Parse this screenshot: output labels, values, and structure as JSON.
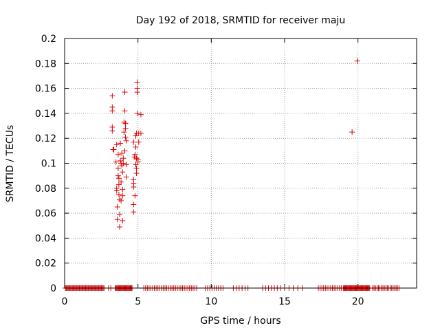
{
  "chart_data": {
    "type": "scatter",
    "title": "Day 192 of 2018, SRMTID for receiver maju",
    "xlabel": "GPS time / hours",
    "ylabel": "SRMTID / TECUs",
    "xlim": [
      0,
      24
    ],
    "ylim": [
      0,
      0.2
    ],
    "xticks": [
      0,
      5,
      10,
      15,
      20
    ],
    "xtick_labels": [
      "0",
      "5",
      "10",
      "15",
      "20"
    ],
    "yticks": [
      0,
      0.02,
      0.04,
      0.06,
      0.08,
      0.1,
      0.12,
      0.14,
      0.16,
      0.18,
      0.2
    ],
    "ytick_labels": [
      "0",
      "0.02",
      "0.04",
      "0.06",
      "0.08",
      "0.1",
      "0.12",
      "0.14",
      "0.16",
      "0.18",
      "0.2"
    ],
    "grid": true,
    "marker": "+",
    "color": "#e00000",
    "series": [
      {
        "name": "SRMTID",
        "points": [
          [
            3.25,
            0.154
          ],
          [
            3.25,
            0.145
          ],
          [
            3.25,
            0.142
          ],
          [
            3.25,
            0.129
          ],
          [
            3.25,
            0.126
          ],
          [
            3.3,
            0.111
          ],
          [
            3.35,
            0.111
          ],
          [
            3.5,
            0.101
          ],
          [
            3.55,
            0.115
          ],
          [
            3.55,
            0.08
          ],
          [
            3.55,
            0.078
          ],
          [
            3.6,
            0.065
          ],
          [
            3.6,
            0.055
          ],
          [
            3.65,
            0.107
          ],
          [
            3.65,
            0.096
          ],
          [
            3.65,
            0.09
          ],
          [
            3.7,
            0.088
          ],
          [
            3.7,
            0.083
          ],
          [
            3.7,
            0.075
          ],
          [
            3.75,
            0.071
          ],
          [
            3.75,
            0.059
          ],
          [
            3.75,
            0.049
          ],
          [
            3.8,
            0.116
          ],
          [
            3.8,
            0.102
          ],
          [
            3.85,
            0.1
          ],
          [
            3.85,
            0.085
          ],
          [
            3.85,
            0.07
          ],
          [
            3.9,
            0.108
          ],
          [
            3.9,
            0.098
          ],
          [
            3.95,
            0.093
          ],
          [
            3.95,
            0.079
          ],
          [
            3.95,
            0.074
          ],
          [
            3.95,
            0.054
          ],
          [
            4.0,
            0.104
          ],
          [
            4.0,
            0.1
          ],
          [
            4.05,
            0.133
          ],
          [
            4.05,
            0.125
          ],
          [
            4.1,
            0.157
          ],
          [
            4.1,
            0.142
          ],
          [
            4.1,
            0.11
          ],
          [
            4.15,
            0.132
          ],
          [
            4.15,
            0.128
          ],
          [
            4.15,
            0.121
          ],
          [
            4.2,
            0.118
          ],
          [
            4.2,
            0.099
          ],
          [
            4.2,
            0.089
          ],
          [
            4.7,
            0.117
          ],
          [
            4.7,
            0.087
          ],
          [
            4.7,
            0.084
          ],
          [
            4.7,
            0.081
          ],
          [
            4.7,
            0.067
          ],
          [
            4.7,
            0.061
          ],
          [
            4.75,
            0.105
          ],
          [
            4.8,
            0.107
          ],
          [
            4.8,
            0.074
          ],
          [
            4.85,
            0.122
          ],
          [
            4.85,
            0.113
          ],
          [
            4.85,
            0.099
          ],
          [
            4.9,
            0.124
          ],
          [
            4.9,
            0.104
          ],
          [
            4.9,
            0.096
          ],
          [
            4.9,
            0.092
          ],
          [
            4.95,
            0.165
          ],
          [
            4.95,
            0.16
          ],
          [
            4.95,
            0.157
          ],
          [
            4.95,
            0.14
          ],
          [
            5.0,
            0.101
          ],
          [
            5.0,
            0.103
          ],
          [
            5.05,
            0.117
          ],
          [
            5.05,
            0.124
          ],
          [
            5.2,
            0.139
          ],
          [
            5.2,
            0.124
          ],
          [
            19.6,
            0.125
          ],
          [
            19.95,
            0.182
          ]
        ],
        "baseline_segments": [
          [
            0.05,
            2.7,
            0.06
          ],
          [
            3.0,
            3.2,
            0.15
          ],
          [
            3.45,
            4.6,
            0.05
          ],
          [
            5.4,
            9.0,
            0.12
          ],
          [
            9.6,
            10.8,
            0.15
          ],
          [
            11.5,
            12.5,
            0.2
          ],
          [
            13.5,
            14.7,
            0.2
          ],
          [
            15.0,
            16.2,
            0.3
          ],
          [
            17.3,
            18.9,
            0.12
          ],
          [
            19.0,
            20.8,
            0.05
          ],
          [
            21.0,
            22.8,
            0.1
          ]
        ]
      }
    ]
  }
}
